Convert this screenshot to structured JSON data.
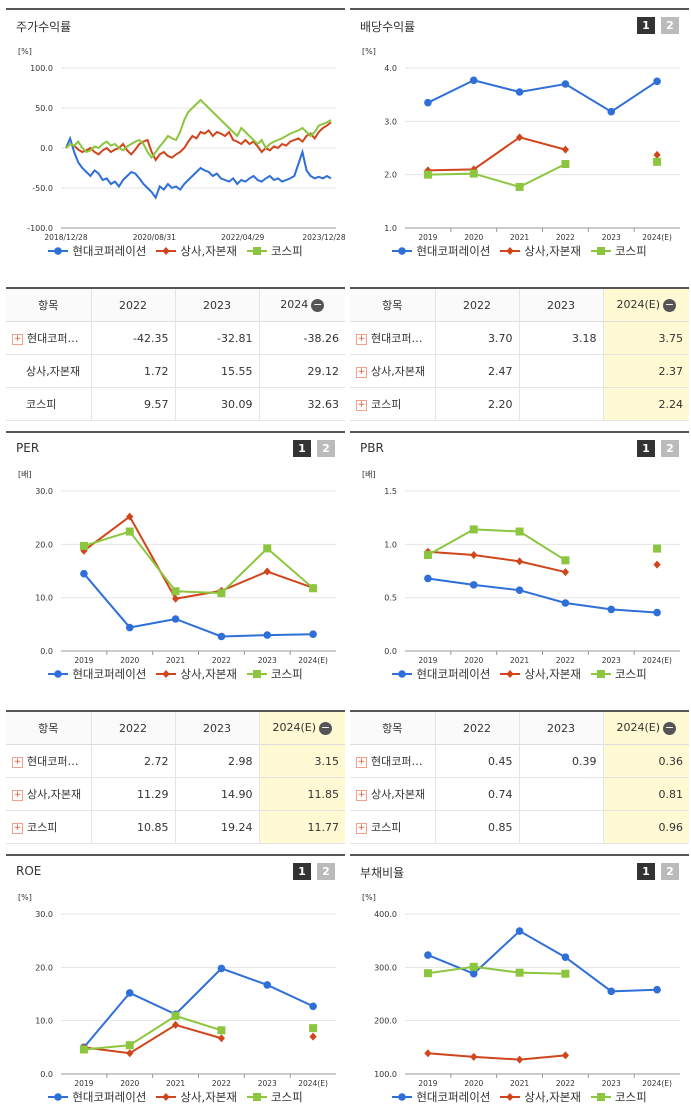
{
  "legend_names": [
    "현대코퍼레이션",
    "상사,자본재",
    "코스피"
  ],
  "colors": {
    "s1": "#2f6fd8",
    "s2": "#d0451b",
    "s3": "#8cc63f"
  },
  "panels": {
    "stock": {
      "title": "주가수익률",
      "unit": "[%]"
    },
    "div": {
      "title": "배당수익률",
      "unit": "[%]",
      "btn1": "1",
      "btn2": "2"
    },
    "per": {
      "title": "PER",
      "unit": "[배]",
      "btn1": "1",
      "btn2": "2"
    },
    "pbr": {
      "title": "PBR",
      "unit": "[배]",
      "btn1": "1",
      "btn2": "2"
    },
    "roe": {
      "title": "ROE",
      "unit": "[%]",
      "btn1": "1",
      "btn2": "2"
    },
    "debt": {
      "title": "부채비율",
      "unit": "[%]",
      "btn1": "1",
      "btn2": "2"
    }
  },
  "tables": {
    "stock": {
      "head": [
        "항목",
        "2022",
        "2023",
        "2024"
      ],
      "rows": [
        [
          "현대코퍼…",
          "-42.35",
          "-32.81",
          "-38.26"
        ],
        [
          "상사,자본재",
          "1.72",
          "15.55",
          "29.12"
        ],
        [
          "코스피",
          "9.57",
          "30.09",
          "32.63"
        ]
      ]
    },
    "div": {
      "head": [
        "항목",
        "2022",
        "2023",
        "2024(E)"
      ],
      "rows": [
        [
          "현대코퍼…",
          "3.70",
          "3.18",
          "3.75"
        ],
        [
          "상사,자본재",
          "2.47",
          "",
          "2.37"
        ],
        [
          "코스피",
          "2.20",
          "",
          "2.24"
        ]
      ]
    },
    "per": {
      "head": [
        "항목",
        "2022",
        "2023",
        "2024(E)"
      ],
      "rows": [
        [
          "현대코퍼…",
          "2.72",
          "2.98",
          "3.15"
        ],
        [
          "상사,자본재",
          "11.29",
          "14.90",
          "11.85"
        ],
        [
          "코스피",
          "10.85",
          "19.24",
          "11.77"
        ]
      ]
    },
    "pbr": {
      "head": [
        "항목",
        "2022",
        "2023",
        "2024(E)"
      ],
      "rows": [
        [
          "현대코퍼…",
          "0.45",
          "0.39",
          "0.36"
        ],
        [
          "상사,자본재",
          "0.74",
          "",
          "0.81"
        ],
        [
          "코스피",
          "0.85",
          "",
          "0.96"
        ]
      ]
    }
  },
  "chart_data": [
    {
      "id": "stock",
      "type": "line",
      "title": "주가수익률",
      "ylabel": "[%]",
      "ylim": [
        -100,
        100
      ],
      "yticks": [
        "100.0",
        "50.0",
        "0.0",
        "-50.0",
        "-100.0"
      ],
      "xticks": [
        "2018/12/28",
        "2020/08/31",
        "2022/04/29",
        "2023/12/28"
      ],
      "series": [
        {
          "name": "현대코퍼레이션",
          "values": [
            0,
            12,
            -5,
            -18,
            -25,
            -30,
            -35,
            -28,
            -32,
            -40,
            -38,
            -45,
            -42,
            -48,
            -40,
            -35,
            -30,
            -32,
            -38,
            -45,
            -50,
            -55,
            -62,
            -48,
            -52,
            -45,
            -50,
            -48,
            -52,
            -45,
            -40,
            -35,
            -30,
            -25,
            -28,
            -30,
            -35,
            -32,
            -38,
            -40,
            -42,
            -38,
            -45,
            -40,
            -42,
            -38,
            -35,
            -40,
            -42,
            -38,
            -35,
            -40,
            -38,
            -42,
            -40,
            -38,
            -35,
            -20,
            -5,
            -28,
            -35,
            -38,
            -36,
            -38,
            -35,
            -38
          ]
        },
        {
          "name": "상사,자본재",
          "values": [
            0,
            5,
            3,
            -2,
            -5,
            -3,
            0,
            -5,
            -8,
            -3,
            0,
            -5,
            -2,
            0,
            5,
            -3,
            -8,
            -2,
            5,
            8,
            10,
            -5,
            -15,
            -8,
            -5,
            -10,
            -12,
            -8,
            -5,
            0,
            8,
            15,
            12,
            20,
            18,
            22,
            15,
            20,
            18,
            15,
            20,
            10,
            8,
            5,
            10,
            5,
            8,
            2,
            -5,
            0,
            -3,
            2,
            0,
            5,
            3,
            8,
            10,
            12,
            8,
            15,
            18,
            12,
            20,
            25,
            28,
            32
          ]
        },
        {
          "name": "코스피",
          "values": [
            0,
            5,
            3,
            8,
            0,
            -5,
            -3,
            2,
            0,
            5,
            8,
            3,
            5,
            0,
            -3,
            2,
            5,
            8,
            10,
            5,
            -5,
            -12,
            -5,
            2,
            8,
            15,
            12,
            10,
            20,
            35,
            45,
            50,
            55,
            60,
            55,
            50,
            45,
            40,
            35,
            30,
            25,
            20,
            15,
            25,
            20,
            15,
            10,
            5,
            10,
            0,
            5,
            8,
            10,
            12,
            15,
            18,
            20,
            22,
            25,
            20,
            15,
            20,
            28,
            30,
            32,
            35
          ]
        }
      ]
    },
    {
      "id": "div",
      "type": "line",
      "title": "배당수익률",
      "ylabel": "[%]",
      "ylim": [
        1,
        4
      ],
      "yticks": [
        "4.0",
        "3.0",
        "2.0",
        "1.0"
      ],
      "categories": [
        "2019",
        "2020",
        "2021",
        "2022",
        "2023",
        "2024(E)"
      ],
      "series": [
        {
          "name": "현대코퍼레이션",
          "values": [
            3.35,
            3.77,
            3.55,
            3.7,
            3.18,
            3.75
          ]
        },
        {
          "name": "상사,자본재",
          "values": [
            2.08,
            2.1,
            2.7,
            2.47,
            null,
            2.37
          ]
        },
        {
          "name": "코스피",
          "values": [
            2.0,
            2.02,
            1.77,
            2.2,
            null,
            2.24
          ]
        }
      ]
    },
    {
      "id": "per",
      "type": "line",
      "title": "PER",
      "ylabel": "[배]",
      "ylim": [
        0,
        30
      ],
      "yticks": [
        "30.0",
        "20.0",
        "10.0",
        "0.0"
      ],
      "categories": [
        "2019",
        "2020",
        "2021",
        "2022",
        "2023",
        "2024(E)"
      ],
      "series": [
        {
          "name": "현대코퍼레이션",
          "values": [
            14.5,
            4.4,
            6.0,
            2.72,
            2.98,
            3.15
          ]
        },
        {
          "name": "상사,자본재",
          "values": [
            18.8,
            25.2,
            9.8,
            11.29,
            14.9,
            11.85
          ]
        },
        {
          "name": "코스피",
          "values": [
            19.7,
            22.4,
            11.2,
            10.85,
            19.24,
            11.77
          ]
        }
      ]
    },
    {
      "id": "pbr",
      "type": "line",
      "title": "PBR",
      "ylabel": "[배]",
      "ylim": [
        0,
        1.5
      ],
      "yticks": [
        "1.5",
        "1.0",
        "0.5",
        "0.0"
      ],
      "categories": [
        "2019",
        "2020",
        "2021",
        "2022",
        "2023",
        "2024(E)"
      ],
      "series": [
        {
          "name": "현대코퍼레이션",
          "values": [
            0.68,
            0.62,
            0.57,
            0.45,
            0.39,
            0.36
          ]
        },
        {
          "name": "상사,자본재",
          "values": [
            0.93,
            0.9,
            0.84,
            0.74,
            null,
            0.81
          ]
        },
        {
          "name": "코스피",
          "values": [
            0.9,
            1.14,
            1.12,
            0.85,
            null,
            0.96
          ]
        }
      ]
    },
    {
      "id": "roe",
      "type": "line",
      "title": "ROE",
      "ylabel": "[%]",
      "ylim": [
        0,
        30
      ],
      "yticks": [
        "30.0",
        "20.0",
        "10.0",
        "0.0"
      ],
      "categories": [
        "2019",
        "2020",
        "2021",
        "2022",
        "2023",
        "2024(E)"
      ],
      "series": [
        {
          "name": "현대코퍼레이션",
          "values": [
            5.0,
            15.2,
            11.2,
            19.8,
            16.7,
            12.7
          ]
        },
        {
          "name": "상사,자본재",
          "values": [
            5.0,
            3.9,
            9.2,
            6.7,
            null,
            7.0
          ]
        },
        {
          "name": "코스피",
          "values": [
            4.6,
            5.4,
            10.9,
            8.2,
            null,
            8.6
          ]
        }
      ]
    },
    {
      "id": "debt",
      "type": "line",
      "title": "부채비율",
      "ylabel": "[%]",
      "ylim": [
        100,
        400
      ],
      "yticks": [
        "400.0",
        "300.0",
        "200.0",
        "100.0"
      ],
      "categories": [
        "2019",
        "2020",
        "2021",
        "2022",
        "2023",
        "2024(E)"
      ],
      "series": [
        {
          "name": "현대코퍼레이션",
          "values": [
            323,
            288,
            368,
            319,
            255,
            258
          ]
        },
        {
          "name": "상사,자본재",
          "values": [
            139,
            132,
            127,
            135,
            null,
            null
          ]
        },
        {
          "name": "코스피",
          "values": [
            289,
            301,
            290,
            288,
            null,
            null
          ]
        }
      ]
    }
  ]
}
